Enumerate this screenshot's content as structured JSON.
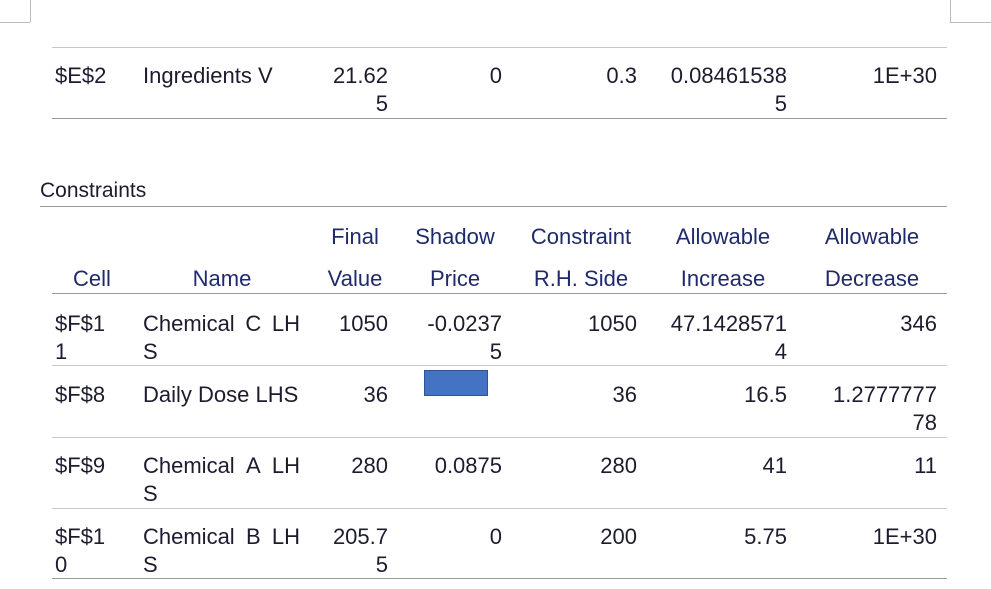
{
  "top_row": [
    "$E$2",
    "Ingredients V",
    "21.625",
    "0",
    "0.3",
    "0.084615385",
    "1E+30"
  ],
  "constraints": {
    "title": "Constraints",
    "header_line1": [
      null,
      null,
      "Final",
      "Shadow",
      "Constraint",
      "Allowable",
      "Allowable"
    ],
    "header_line2": [
      "Cell",
      "Name",
      "Value",
      "Price",
      "R.H. Side",
      "Increase",
      "Decrease"
    ],
    "rows": [
      [
        "$F$11",
        "Chemical C LHS",
        "1050",
        "-0.02375",
        "1050",
        "47.14285714",
        "346"
      ],
      [
        "$F$8",
        "Daily Dose LHS",
        "36",
        null,
        "36",
        "16.5",
        "1.277777778"
      ],
      [
        "$F$9",
        "Chemical A LHS",
        "280",
        "0.0875",
        "280",
        "41",
        "11"
      ],
      [
        "$F$10",
        "Chemical B LHS",
        "205.75",
        "0",
        "200",
        "5.75",
        "1E+30"
      ]
    ]
  }
}
